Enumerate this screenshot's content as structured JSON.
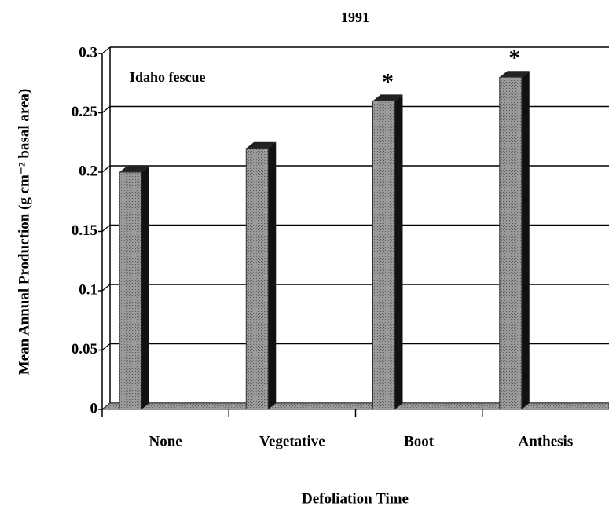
{
  "chart_data": {
    "type": "bar3d",
    "title": "1991",
    "annotation": "Idaho fescue",
    "categories": [
      "None",
      "Vegetative",
      "Boot",
      "Anthesis"
    ],
    "values": [
      0.2,
      0.22,
      0.26,
      0.28
    ],
    "markers": [
      {
        "text": "*",
        "category": "Boot"
      },
      {
        "text": "*",
        "category": "Anthesis"
      }
    ],
    "color": "#8a8a8a",
    "ylim": [
      0,
      0.3
    ],
    "yticks": [
      0,
      0.05,
      0.1,
      0.15,
      0.2,
      0.25,
      0.3
    ],
    "grid": true,
    "xlabel": "Defoliation Time",
    "ylabel": "Mean Annual Production (g cm⁻² basal area)"
  }
}
